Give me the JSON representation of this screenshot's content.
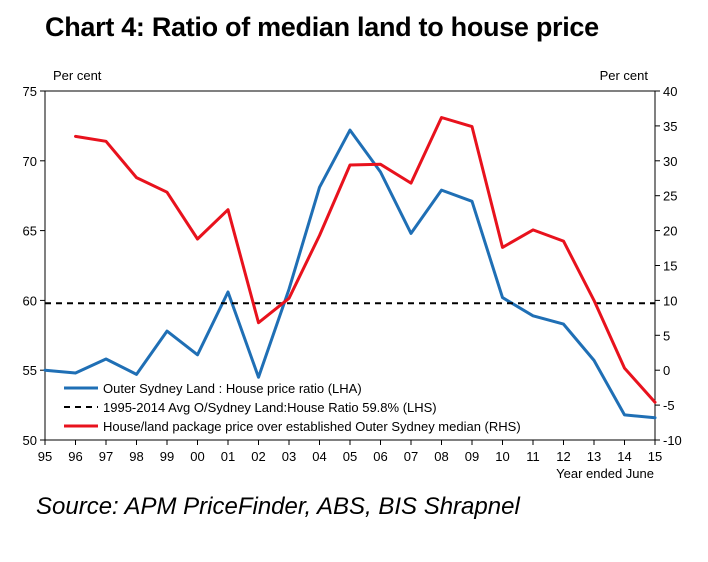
{
  "title": "Chart 4: Ratio of median land to house price",
  "source": "Source: APM PriceFinder, ABS, BIS Shrapnel",
  "chart_data": {
    "type": "line",
    "categories": [
      "95",
      "96",
      "97",
      "98",
      "99",
      "00",
      "01",
      "02",
      "03",
      "04",
      "05",
      "06",
      "07",
      "08",
      "09",
      "10",
      "11",
      "12",
      "13",
      "14",
      "15"
    ],
    "xlabel": "Year ended June",
    "left_axis": {
      "unit": "Per cent",
      "range": [
        50,
        75
      ],
      "ticks": [
        50,
        55,
        60,
        65,
        70,
        75
      ]
    },
    "right_axis": {
      "unit": "Per cent",
      "range": [
        -10,
        40
      ],
      "ticks": [
        -10,
        -5,
        0,
        5,
        10,
        15,
        20,
        25,
        30,
        35,
        40
      ]
    },
    "grid": false,
    "legend_position": "bottom-left",
    "series": [
      {
        "name": "Outer Sydney Land : House price ratio (LHA)",
        "axis": "left",
        "color": "#1f6fb5",
        "style": "solid",
        "values": [
          55.0,
          54.8,
          55.8,
          54.7,
          57.8,
          56.1,
          60.6,
          54.5,
          60.8,
          68.1,
          72.2,
          69.2,
          64.8,
          67.9,
          67.1,
          60.2,
          58.9,
          58.3,
          55.7,
          51.8,
          51.6
        ]
      },
      {
        "name": "1995-2014 Avg O/Sydney Land:House Ratio 59.8% (LHS)",
        "axis": "left",
        "color": "#000000",
        "style": "dashed",
        "values": [
          59.8,
          59.8,
          59.8,
          59.8,
          59.8,
          59.8,
          59.8,
          59.8,
          59.8,
          59.8,
          59.8,
          59.8,
          59.8,
          59.8,
          59.8,
          59.8,
          59.8,
          59.8,
          59.8,
          59.8,
          59.8
        ]
      },
      {
        "name": "House/land package price over established Outer Sydney median (RHS)",
        "axis": "right",
        "color": "#e8121d",
        "style": "solid",
        "values": [
          null,
          33.5,
          32.8,
          27.6,
          25.5,
          18.8,
          23.0,
          6.8,
          10.3,
          19.3,
          29.4,
          29.5,
          26.8,
          36.2,
          34.9,
          17.6,
          20.1,
          18.5,
          10.0,
          0.3,
          -4.6
        ]
      }
    ]
  }
}
